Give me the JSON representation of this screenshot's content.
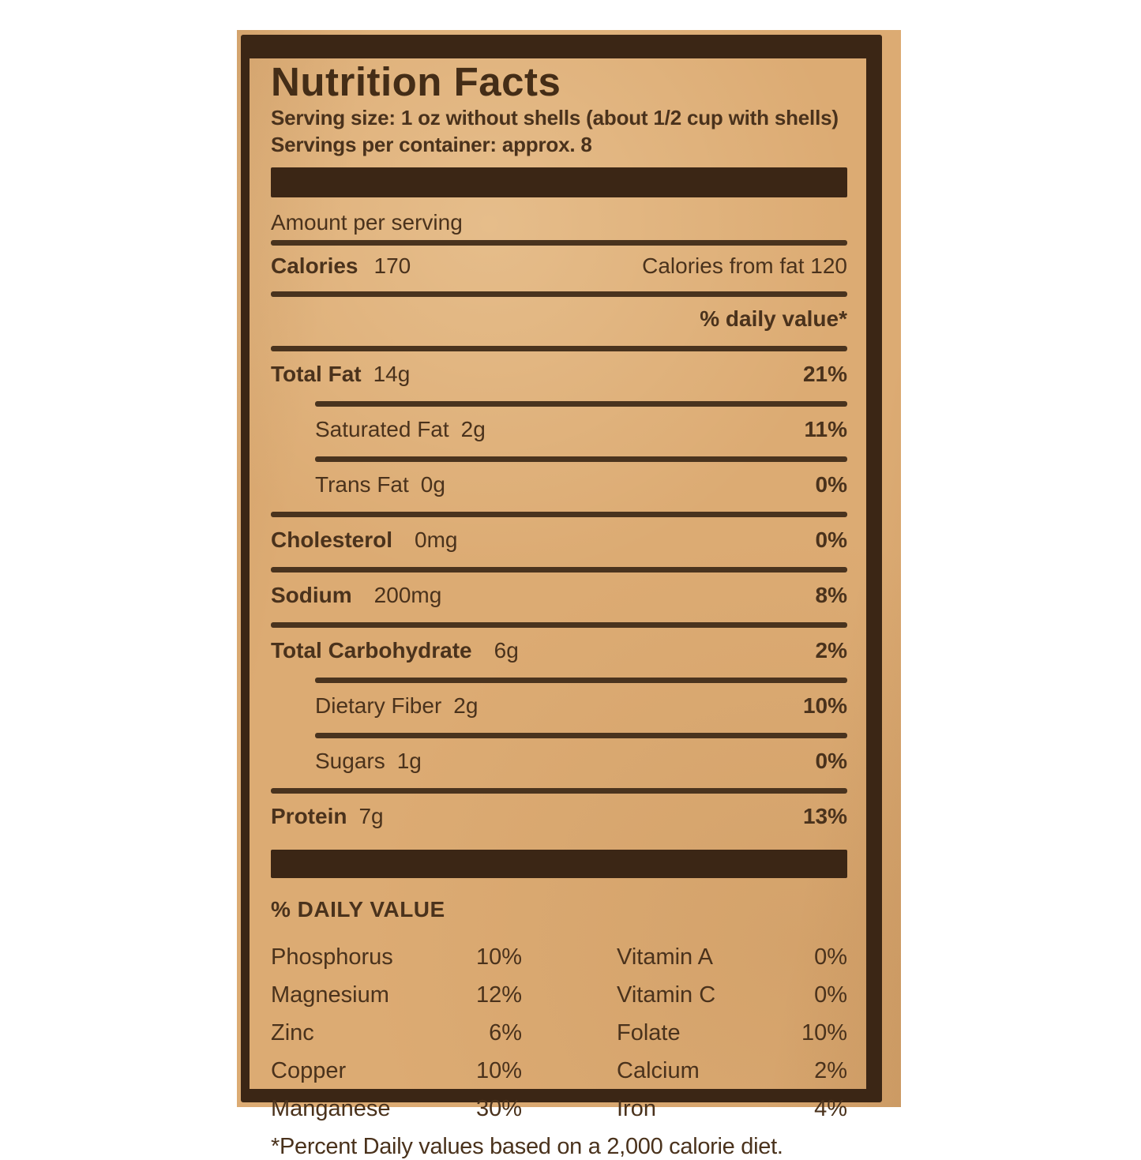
{
  "colors": {
    "paper": "#dcab73",
    "ink": "#3b2615",
    "text": "#4a321c",
    "background": "#ffffff"
  },
  "label": {
    "title": "Nutrition Facts",
    "serving_size": "Serving size: 1 oz without shells (about 1/2 cup with shells)",
    "servings_per_container": "Servings per container: approx. 8",
    "amount_per_serving": "Amount per serving",
    "calories_label": "Calories",
    "calories_value": "170",
    "calories_from_fat": "Calories from fat 120",
    "daily_value_header": "% daily value*",
    "rows": [
      {
        "name": "Total Fat",
        "amount": "14g",
        "dv": "21%"
      },
      {
        "name": "Saturated Fat",
        "amount": "2g",
        "dv": "11%"
      },
      {
        "name": "Trans Fat",
        "amount": "0g",
        "dv": "0%"
      },
      {
        "name": "Cholesterol",
        "amount": "0mg",
        "dv": "0%"
      },
      {
        "name": "Sodium",
        "amount": "200mg",
        "dv": "8%"
      },
      {
        "name": "Total Carbohydrate",
        "amount": "6g",
        "dv": "2%"
      },
      {
        "name": "Dietary Fiber",
        "amount": "2g",
        "dv": "10%"
      },
      {
        "name": "Sugars",
        "amount": "1g",
        "dv": "0%"
      },
      {
        "name": "Protein",
        "amount": "7g",
        "dv": "13%"
      }
    ],
    "daily_value_section_title": "% DAILY VALUE",
    "micronutrients_left": [
      {
        "name": "Phosphorus",
        "value": "10%"
      },
      {
        "name": "Magnesium",
        "value": "12%"
      },
      {
        "name": "Zinc",
        "value": "6%"
      },
      {
        "name": "Copper",
        "value": "10%"
      },
      {
        "name": "Manganese",
        "value": "30%"
      }
    ],
    "micronutrients_right": [
      {
        "name": "Vitamin A",
        "value": "0%"
      },
      {
        "name": "Vitamin C",
        "value": "0%"
      },
      {
        "name": "Folate",
        "value": "10%"
      },
      {
        "name": "Calcium",
        "value": "2%"
      },
      {
        "name": "Iron",
        "value": "4%"
      }
    ],
    "footnote": "*Percent Daily values based on a 2,000 calorie diet."
  }
}
